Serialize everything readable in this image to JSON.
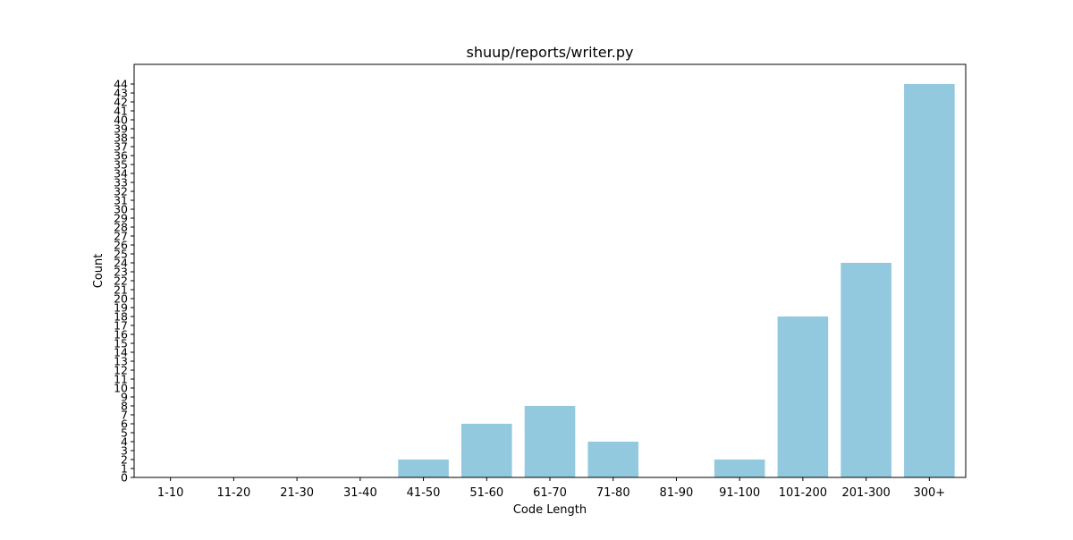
{
  "chart_data": {
    "type": "bar",
    "title": "shuup/reports/writer.py",
    "xlabel": "Code Length",
    "ylabel": "Count",
    "categories": [
      "1-10",
      "11-20",
      "21-30",
      "31-40",
      "41-50",
      "51-60",
      "61-70",
      "71-80",
      "81-90",
      "91-100",
      "101-200",
      "201-300",
      "300+"
    ],
    "values": [
      0,
      0,
      0,
      0,
      2,
      6,
      8,
      4,
      0,
      2,
      18,
      24,
      44
    ],
    "ylim": [
      0,
      46.2
    ],
    "yticks": [
      0,
      1,
      2,
      3,
      4,
      5,
      6,
      7,
      8,
      9,
      10,
      11,
      12,
      13,
      14,
      15,
      16,
      17,
      18,
      19,
      20,
      21,
      22,
      23,
      24,
      25,
      26,
      27,
      28,
      29,
      30,
      31,
      32,
      33,
      34,
      35,
      36,
      37,
      38,
      39,
      40,
      41,
      42,
      43,
      44
    ],
    "bar_color": "#92c9de",
    "grid": false,
    "legend": "none"
  }
}
